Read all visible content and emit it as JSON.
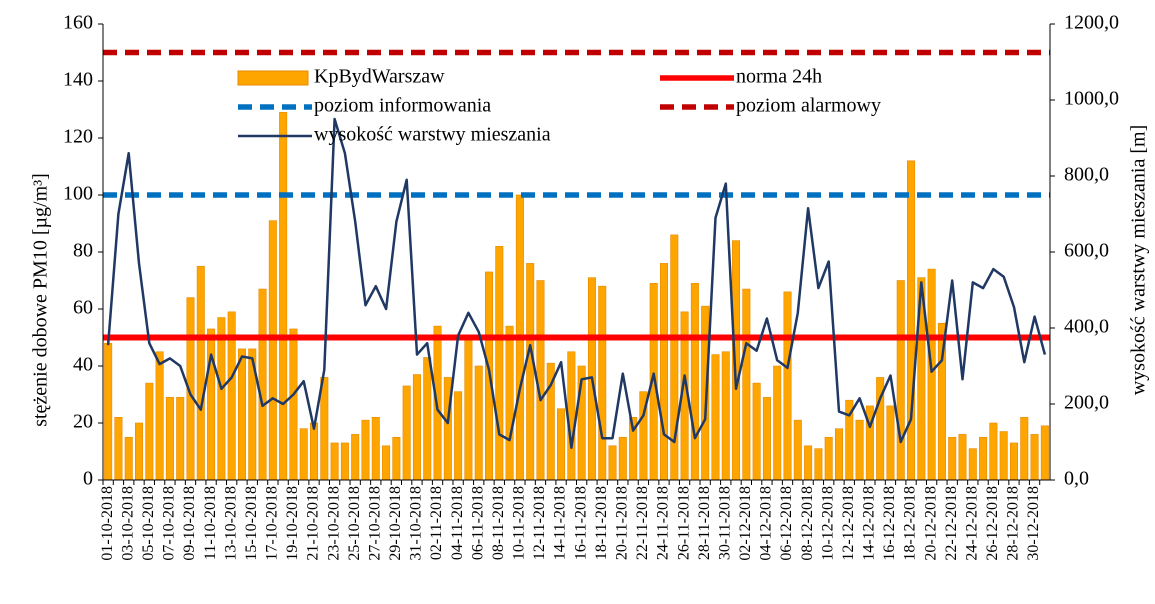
{
  "chart_data": {
    "type": "bar",
    "categories": [
      "01-10-2018",
      null,
      "03-10-2018",
      null,
      "05-10-2018",
      null,
      "07-10-2018",
      null,
      "09-10-2018",
      null,
      "11-10-2018",
      null,
      "13-10-2018",
      null,
      "15-10-2018",
      null,
      "17-10-2018",
      null,
      "19-10-2018",
      null,
      "21-10-2018",
      null,
      "23-10-2018",
      null,
      "25-10-2018",
      null,
      "27-10-2018",
      null,
      "29-10-2018",
      null,
      "31-10-2018",
      null,
      "02-11-2018",
      null,
      "04-11-2018",
      null,
      "06-11-2018",
      null,
      "08-11-2018",
      null,
      "10-11-2018",
      null,
      "12-11-2018",
      null,
      "14-11-2018",
      null,
      "16-11-2018",
      null,
      "18-11-2018",
      null,
      "20-11-2018",
      null,
      "22-11-2018",
      null,
      "24-11-2018",
      null,
      "26-11-2018",
      null,
      "28-11-2018",
      null,
      "30-11-2018",
      null,
      "02-12-2018",
      null,
      "04-12-2018",
      null,
      "06-12-2018",
      null,
      "08-12-2018",
      null,
      "10-12-2018",
      null,
      "12-12-2018",
      null,
      "14-12-2018",
      null,
      "16-12-2018",
      null,
      "18-12-2018",
      null,
      "20-12-2018",
      null,
      "22-12-2018",
      null,
      "24-12-2018",
      null,
      "26-12-2018",
      null,
      "28-12-2018",
      null,
      "30-12-2018",
      null
    ],
    "series": [
      {
        "name": "KpBydWarszaw",
        "type": "bar",
        "color": "#FFA500",
        "values": [
          48,
          22,
          15,
          20,
          34,
          45,
          29,
          29,
          64,
          75,
          53,
          57,
          59,
          46,
          46,
          67,
          91,
          129,
          53,
          18,
          20,
          36,
          13,
          13,
          16,
          21,
          22,
          12,
          15,
          33,
          37,
          43,
          54,
          36,
          31,
          50,
          40,
          73,
          82,
          54,
          100,
          76,
          70,
          41,
          25,
          45,
          40,
          71,
          68,
          12,
          15,
          22,
          31,
          69,
          76,
          86,
          59,
          69,
          61,
          44,
          45,
          84,
          67,
          34,
          29,
          40,
          66,
          21,
          12,
          11,
          15,
          18,
          28,
          21,
          26,
          36,
          26,
          70,
          112,
          71,
          74,
          55,
          15,
          16,
          11,
          15,
          20,
          17,
          13,
          22,
          16,
          19
        ]
      },
      {
        "name": "wysokość warstwy mieszania",
        "type": "line",
        "axis": "y2",
        "color": "#1F3864",
        "values": [
          355,
          700,
          860,
          570,
          360,
          305,
          320,
          300,
          225,
          185,
          330,
          240,
          270,
          325,
          320,
          195,
          215,
          200,
          225,
          260,
          135,
          290,
          950,
          860,
          680,
          460,
          510,
          450,
          680,
          790,
          330,
          360,
          185,
          150,
          380,
          440,
          390,
          290,
          120,
          105,
          240,
          355,
          210,
          250,
          310,
          85,
          265,
          270,
          110,
          110,
          280,
          130,
          170,
          280,
          120,
          100,
          275,
          110,
          160,
          690,
          780,
          240,
          360,
          340,
          425,
          315,
          295,
          440,
          715,
          505,
          575,
          180,
          170,
          215,
          140,
          215,
          275,
          100,
          160,
          520,
          285,
          315,
          525,
          265,
          520,
          505,
          555,
          535,
          455,
          310,
          430,
          330
        ]
      }
    ],
    "reference_lines": [
      {
        "name": "norma 24h",
        "value": 50,
        "color": "#FF0000",
        "dashed": false
      },
      {
        "name": "poziom informowania",
        "value": 100,
        "color": "#0070C0",
        "dashed": true
      },
      {
        "name": "poziom alarmowy",
        "value": 150,
        "color": "#C00000",
        "dashed": true
      }
    ],
    "ylabel": "stężenie dobowe PM10 [µg/m³]",
    "y2label": "wysokość warstwy mieszania [m]",
    "ylim": [
      0,
      160
    ],
    "yticks": [
      0,
      20,
      40,
      60,
      80,
      100,
      120,
      140,
      160
    ],
    "y2lim": [
      0,
      1200
    ],
    "y2ticks": [
      {
        "value": 0,
        "label": "0,0"
      },
      {
        "value": 200,
        "label": "200,0"
      },
      {
        "value": 400,
        "label": "400,0"
      },
      {
        "value": 600,
        "label": "600,0"
      },
      {
        "value": 800,
        "label": "800,0"
      },
      {
        "value": 1000,
        "label": "1000,0"
      },
      {
        "value": 1200,
        "label": "1200,0"
      }
    ]
  }
}
